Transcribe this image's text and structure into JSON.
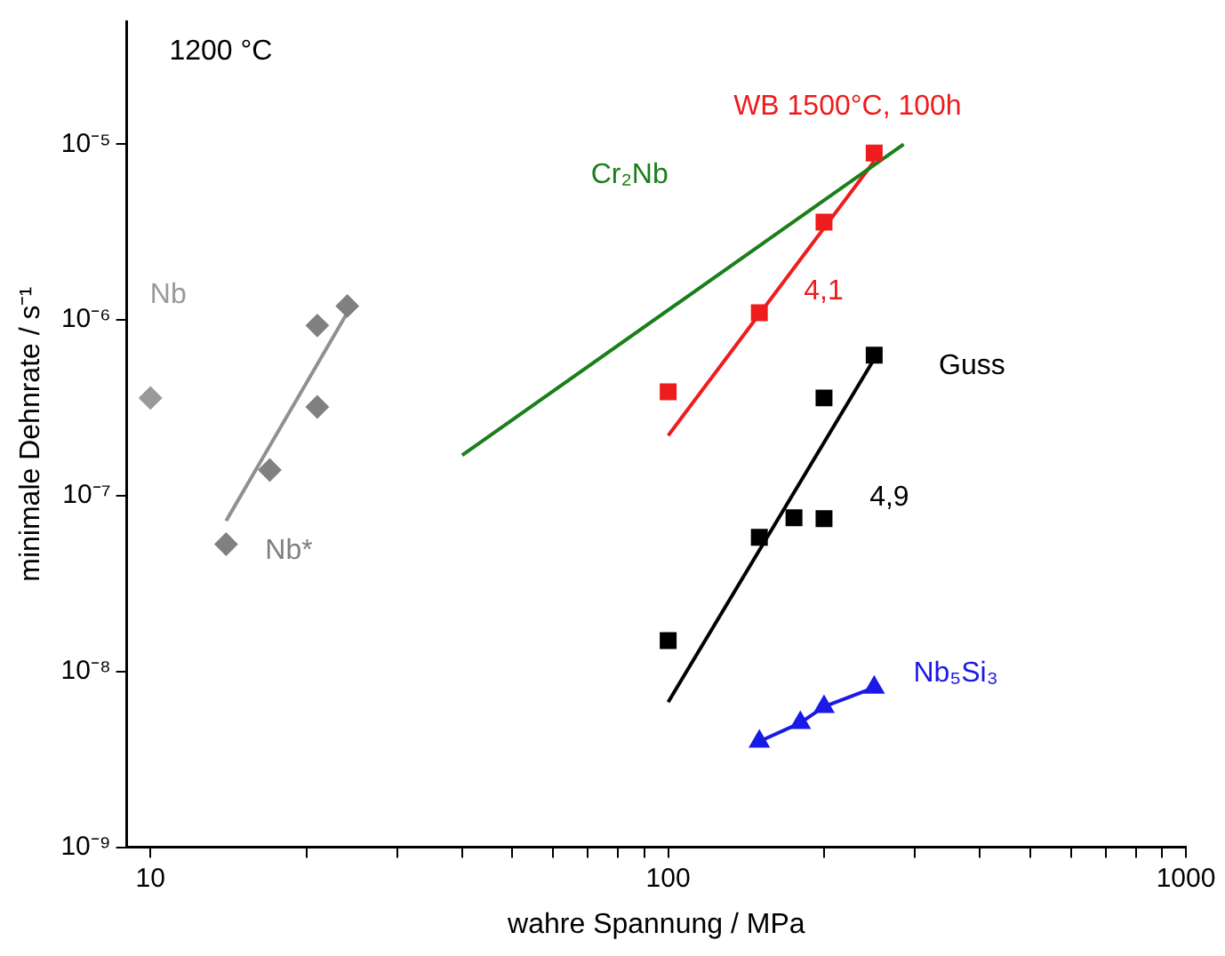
{
  "chart_data": {
    "type": "scatter",
    "xlabel": "wahre Spannung / MPa",
    "ylabel": "minimale Dehnrate / s⁻¹",
    "log": "xy",
    "grid": false,
    "legend": false,
    "xlim": [
      9,
      1000
    ],
    "ylim": [
      1e-09,
      5e-05
    ],
    "xticks": [
      10,
      {
        "value": 20,
        "label": null
      },
      {
        "value": 30,
        "label": null
      },
      {
        "value": 40,
        "label": null
      },
      {
        "value": 50,
        "label": null
      },
      {
        "value": 60,
        "label": null
      },
      {
        "value": 70,
        "label": null
      },
      {
        "value": 80,
        "label": null
      },
      {
        "value": 90,
        "label": null
      },
      100,
      {
        "value": 200,
        "label": null
      },
      {
        "value": 300,
        "label": null
      },
      {
        "value": 400,
        "label": null
      },
      {
        "value": 500,
        "label": null
      },
      {
        "value": 600,
        "label": null
      },
      {
        "value": 700,
        "label": null
      },
      {
        "value": 800,
        "label": null
      },
      {
        "value": 900,
        "label": null
      },
      1000
    ],
    "yticks": [
      {
        "value": 1e-09,
        "label": "10⁻⁹"
      },
      {
        "value": 1e-08,
        "label": "10⁻⁸"
      },
      {
        "value": 1e-07,
        "label": "10⁻⁷"
      },
      {
        "value": 1e-06,
        "label": "10⁻⁶"
      },
      {
        "value": 1e-05,
        "label": "10⁻⁵"
      }
    ],
    "series": [
      {
        "name": "Nb",
        "marker": "diamond",
        "color": "#999999",
        "x": [
          10
        ],
        "values": [
          3.6e-07
        ]
      },
      {
        "name": "Nb*",
        "marker": "diamond",
        "color": "#808080",
        "x": [
          14,
          17,
          21,
          21,
          24
        ],
        "values": [
          5.3e-08,
          1.4e-07,
          9.3e-07,
          3.2e-07,
          1.2e-06
        ]
      },
      {
        "type": "line",
        "color": "#909090",
        "x": [
          14,
          24
        ],
        "values": [
          7.2e-08,
          1.1e-06
        ]
      },
      {
        "name": "Cr₂Nb",
        "type": "line",
        "color": "#1a7f1a",
        "x": [
          40,
          285
        ],
        "values": [
          1.7e-07,
          1e-05
        ]
      },
      {
        "name": "WB 1500°C, 100h",
        "marker": "square",
        "color": "#ee1c1c",
        "x": [
          100,
          150,
          200,
          250
        ],
        "values": [
          3.9e-07,
          1.1e-06,
          3.6e-06,
          8.9e-06
        ]
      },
      {
        "type": "line",
        "color": "#ee1c1c",
        "x": [
          100,
          250
        ],
        "values": [
          2.2e-07,
          8e-06
        ]
      },
      {
        "name": "Guss",
        "marker": "square",
        "color": "#000000",
        "x": [
          100,
          150,
          175,
          200,
          200,
          250
        ],
        "values": [
          1.5e-08,
          5.8e-08,
          7.5e-08,
          7.4e-08,
          3.6e-07,
          6.3e-07
        ]
      },
      {
        "type": "line",
        "color": "#000000",
        "x": [
          100,
          250
        ],
        "values": [
          6.7e-09,
          6e-07
        ]
      },
      {
        "name": "Nb₅Si₃",
        "type": "line",
        "marker": "triangle",
        "color": "#1a1ae6",
        "x": [
          150,
          180,
          200,
          250
        ],
        "values": [
          4e-09,
          5.1e-09,
          6.3e-09,
          8.1e-09
        ]
      }
    ],
    "annotations": [
      "1200 °C",
      "4,1",
      "4,9"
    ]
  }
}
